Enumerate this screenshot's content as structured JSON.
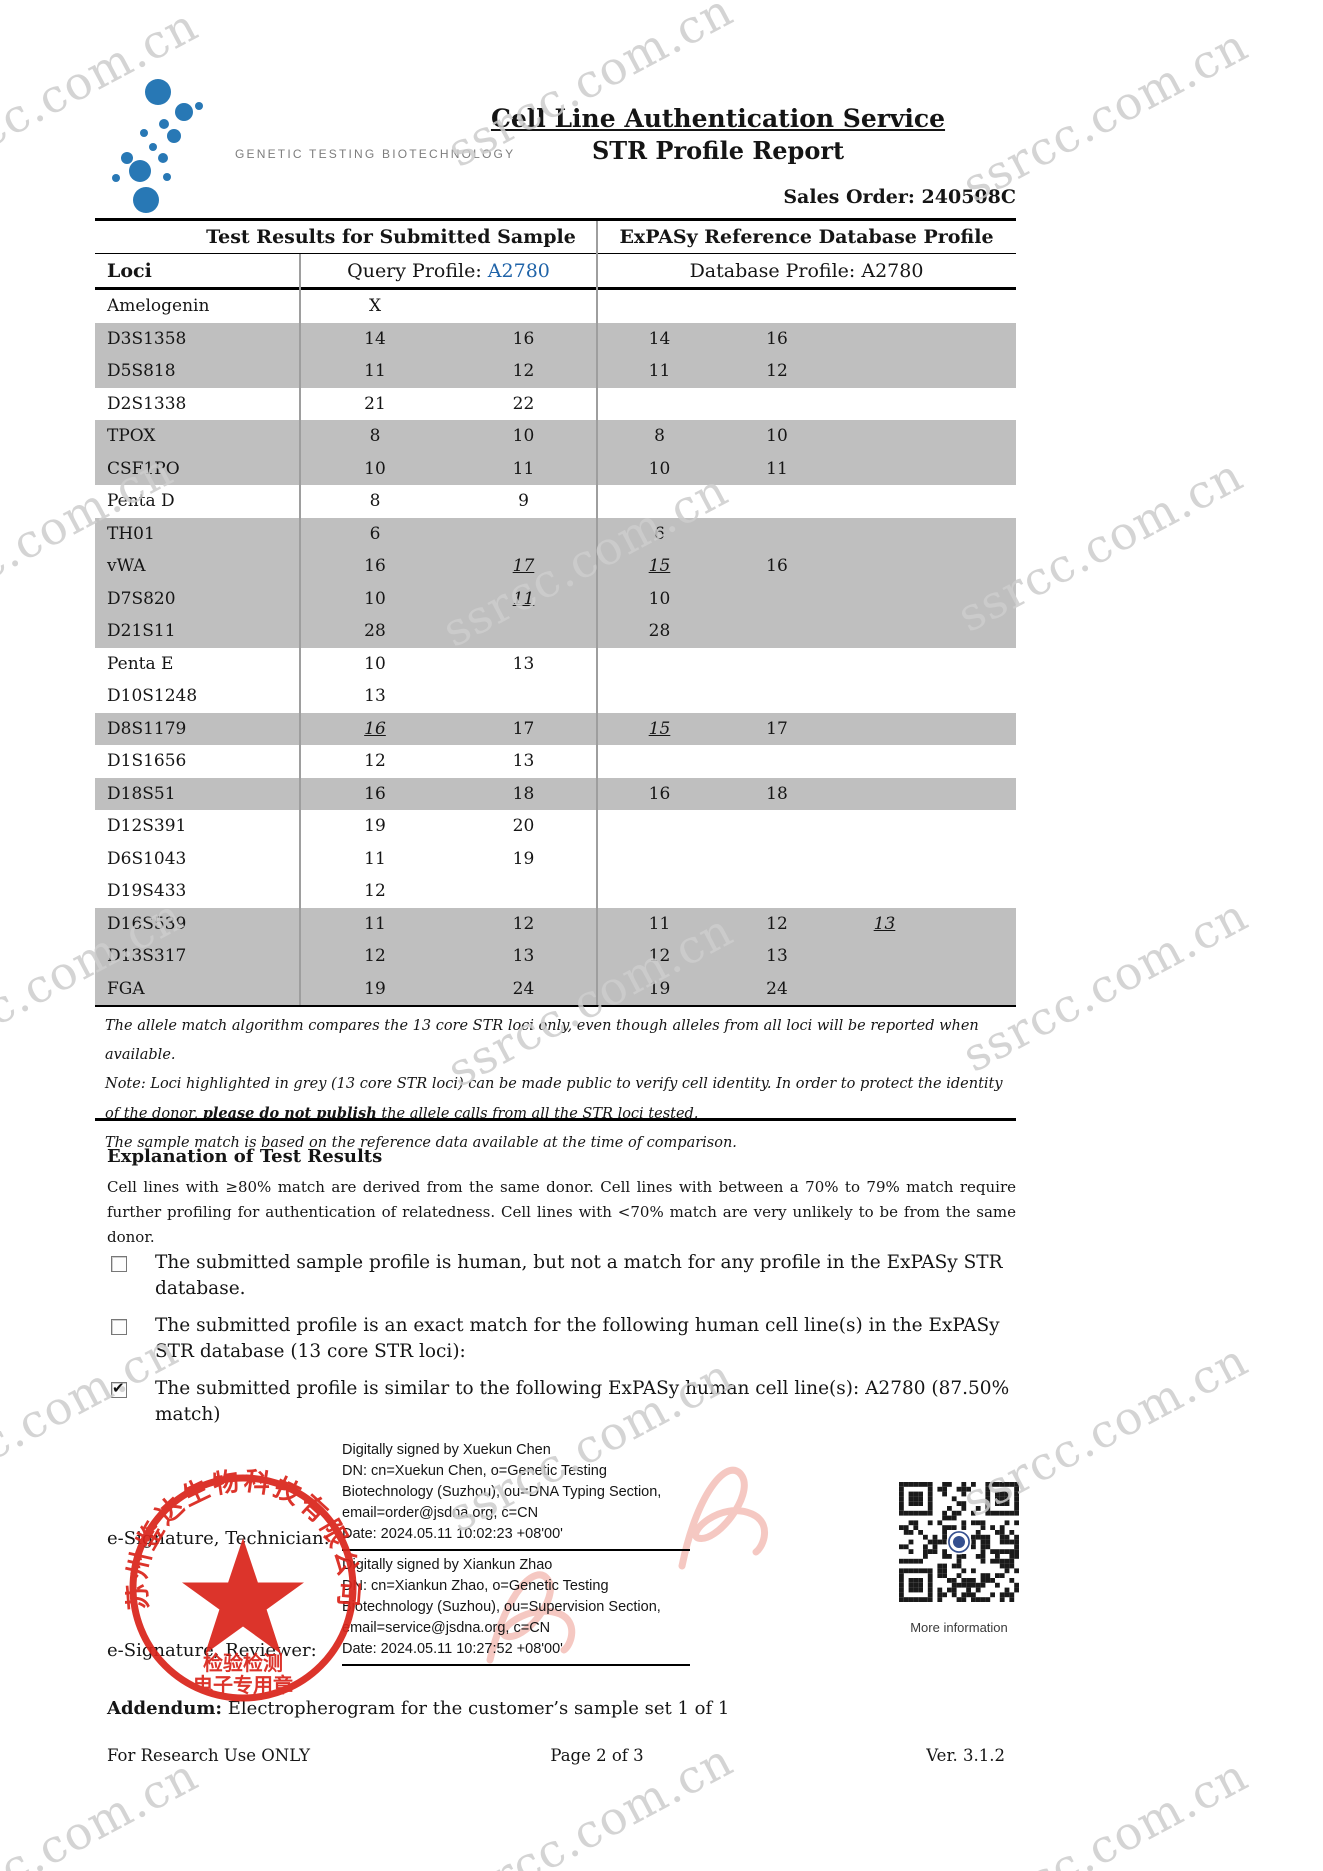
{
  "header": {
    "logo_text": "GENETIC TESTING BIOTECHNOLOGY",
    "title_line1": "Cell Line Authentication Service",
    "title_line2": "STR Profile Report",
    "sales_order_label": "Sales Order:",
    "sales_order_value": "240508C"
  },
  "table": {
    "group_header_left": "Test Results for Submitted Sample",
    "group_header_right": "ExPASy Reference Database Profile",
    "loci_header": "Loci",
    "query_profile_label": "Query Profile:",
    "query_profile_value": "A2780",
    "database_profile_label": "Database Profile:",
    "database_profile_value": "A2780",
    "core_row_color": "#bfbfbf",
    "rows": [
      {
        "locus": "Amelogenin",
        "core": false,
        "query": [
          {
            "v": "X"
          }
        ],
        "ref": []
      },
      {
        "locus": "D3S1358",
        "core": true,
        "query": [
          {
            "v": "14"
          },
          {
            "v": "16"
          }
        ],
        "ref": [
          {
            "v": "14"
          },
          {
            "v": "16"
          }
        ]
      },
      {
        "locus": "D5S818",
        "core": true,
        "query": [
          {
            "v": "11"
          },
          {
            "v": "12"
          }
        ],
        "ref": [
          {
            "v": "11"
          },
          {
            "v": "12"
          }
        ]
      },
      {
        "locus": "D2S1338",
        "core": false,
        "query": [
          {
            "v": "21"
          },
          {
            "v": "22"
          }
        ],
        "ref": []
      },
      {
        "locus": "TPOX",
        "core": true,
        "query": [
          {
            "v": "8"
          },
          {
            "v": "10"
          }
        ],
        "ref": [
          {
            "v": "8"
          },
          {
            "v": "10"
          }
        ]
      },
      {
        "locus": "CSF1PO",
        "core": true,
        "query": [
          {
            "v": "10"
          },
          {
            "v": "11"
          }
        ],
        "ref": [
          {
            "v": "10"
          },
          {
            "v": "11"
          }
        ]
      },
      {
        "locus": "Penta D",
        "core": false,
        "query": [
          {
            "v": "8"
          },
          {
            "v": "9"
          }
        ],
        "ref": []
      },
      {
        "locus": "TH01",
        "core": true,
        "query": [
          {
            "v": "6"
          }
        ],
        "ref": [
          {
            "v": "6"
          }
        ]
      },
      {
        "locus": "vWA",
        "core": true,
        "query": [
          {
            "v": "16"
          },
          {
            "v": "17",
            "u": true
          }
        ],
        "ref": [
          {
            "v": "15",
            "u": true
          },
          {
            "v": "16"
          }
        ]
      },
      {
        "locus": "D7S820",
        "core": true,
        "query": [
          {
            "v": "10"
          },
          {
            "v": "11",
            "u": true
          }
        ],
        "ref": [
          {
            "v": "10"
          }
        ]
      },
      {
        "locus": "D21S11",
        "core": true,
        "query": [
          {
            "v": "28"
          }
        ],
        "ref": [
          {
            "v": "28"
          }
        ]
      },
      {
        "locus": "Penta E",
        "core": false,
        "query": [
          {
            "v": "10"
          },
          {
            "v": "13"
          }
        ],
        "ref": []
      },
      {
        "locus": "D10S1248",
        "core": false,
        "query": [
          {
            "v": "13"
          }
        ],
        "ref": []
      },
      {
        "locus": "D8S1179",
        "core": true,
        "query": [
          {
            "v": "16",
            "u": true
          },
          {
            "v": "17"
          }
        ],
        "ref": [
          {
            "v": "15",
            "u": true
          },
          {
            "v": "17"
          }
        ]
      },
      {
        "locus": "D1S1656",
        "core": false,
        "query": [
          {
            "v": "12"
          },
          {
            "v": "13"
          }
        ],
        "ref": []
      },
      {
        "locus": "D18S51",
        "core": true,
        "query": [
          {
            "v": "16"
          },
          {
            "v": "18"
          }
        ],
        "ref": [
          {
            "v": "16"
          },
          {
            "v": "18"
          }
        ]
      },
      {
        "locus": "D12S391",
        "core": false,
        "query": [
          {
            "v": "19"
          },
          {
            "v": "20"
          }
        ],
        "ref": []
      },
      {
        "locus": "D6S1043",
        "core": false,
        "query": [
          {
            "v": "11"
          },
          {
            "v": "19"
          }
        ],
        "ref": []
      },
      {
        "locus": "D19S433",
        "core": false,
        "query": [
          {
            "v": "12"
          }
        ],
        "ref": []
      },
      {
        "locus": "D16S539",
        "core": true,
        "query": [
          {
            "v": "11"
          },
          {
            "v": "12"
          }
        ],
        "ref": [
          {
            "v": "11"
          },
          {
            "v": "12"
          },
          {
            "v": "13",
            "u": true
          }
        ]
      },
      {
        "locus": "D13S317",
        "core": true,
        "query": [
          {
            "v": "12"
          },
          {
            "v": "13"
          }
        ],
        "ref": [
          {
            "v": "12"
          },
          {
            "v": "13"
          }
        ]
      },
      {
        "locus": "FGA",
        "core": true,
        "query": [
          {
            "v": "19"
          },
          {
            "v": "24"
          }
        ],
        "ref": [
          {
            "v": "19"
          },
          {
            "v": "24"
          }
        ]
      }
    ]
  },
  "footnotes": [
    [
      {
        "t": "The allele match algorithm compares the 13 core STR loci only, even though alleles from all loci will be reported when available."
      }
    ],
    [
      {
        "t": "Note: Loci highlighted in grey (13 core STR loci) can be made public to verify cell identity. In order to protect the identity of the donor, "
      },
      {
        "t": "please do not publish",
        "b": true
      },
      {
        "t": " the allele calls from all the STR loci tested."
      }
    ],
    [
      {
        "t": "The sample match is based on the reference data available at the time of comparison."
      }
    ]
  ],
  "explanation": {
    "heading": "Explanation of Test Results",
    "body": "Cell lines with ≥80% match are derived from the same donor. Cell lines with between a 70% to 79% match require further profiling for authentication of relatedness. Cell lines with <70% match are very unlikely to be from the same donor."
  },
  "checkboxes": [
    {
      "checked": false,
      "text": "The submitted sample profile is human, but not a match for any profile in the ExPASy STR database."
    },
    {
      "checked": false,
      "text": "The submitted profile is an exact match for the following human cell line(s) in the ExPASy STR database (13 core STR loci):"
    },
    {
      "checked": true,
      "text": "The submitted profile is similar to the following ExPASy human cell line(s): A2780 (87.50% match)"
    }
  ],
  "signatures": {
    "technician_label": "e-Signature, Technician:",
    "reviewer_label": "e-Signature, Reviewer:",
    "blocks": [
      {
        "lines": [
          "Digitally signed by Xuekun Chen",
          "DN: cn=Xuekun Chen, o=Genetic Testing",
          "Biotechnology (Suzhou), ou=DNA Typing Section,",
          "email=order@jsdna.org, c=CN",
          "Date: 2024.05.11 10:02:23 +08'00'"
        ]
      },
      {
        "lines": [
          "Digitally signed by Xiankun Zhao",
          "DN: cn=Xiankun Zhao, o=Genetic Testing",
          "Biotechnology (Suzhou), ou=Supervision Section,",
          "email=service@jsdna.org, c=CN",
          "Date: 2024.05.11 10:27:52 +08'00'"
        ]
      }
    ]
  },
  "stamp": {
    "ring_text": "苏州鉴达生物科技有限公司",
    "line1": "检验检测",
    "line2": "电子专用章",
    "color": "#da251c"
  },
  "qr": {
    "caption": "More information"
  },
  "addendum": {
    "label": "Addendum:",
    "text": " Electropherogram for the customer’s sample set 1 of 1"
  },
  "footer": {
    "left": "For Research Use ONLY",
    "center": "Page 2 of 3",
    "right": "Ver. 3.1.2"
  },
  "watermark": {
    "text": "ssrcc.com.cn"
  }
}
